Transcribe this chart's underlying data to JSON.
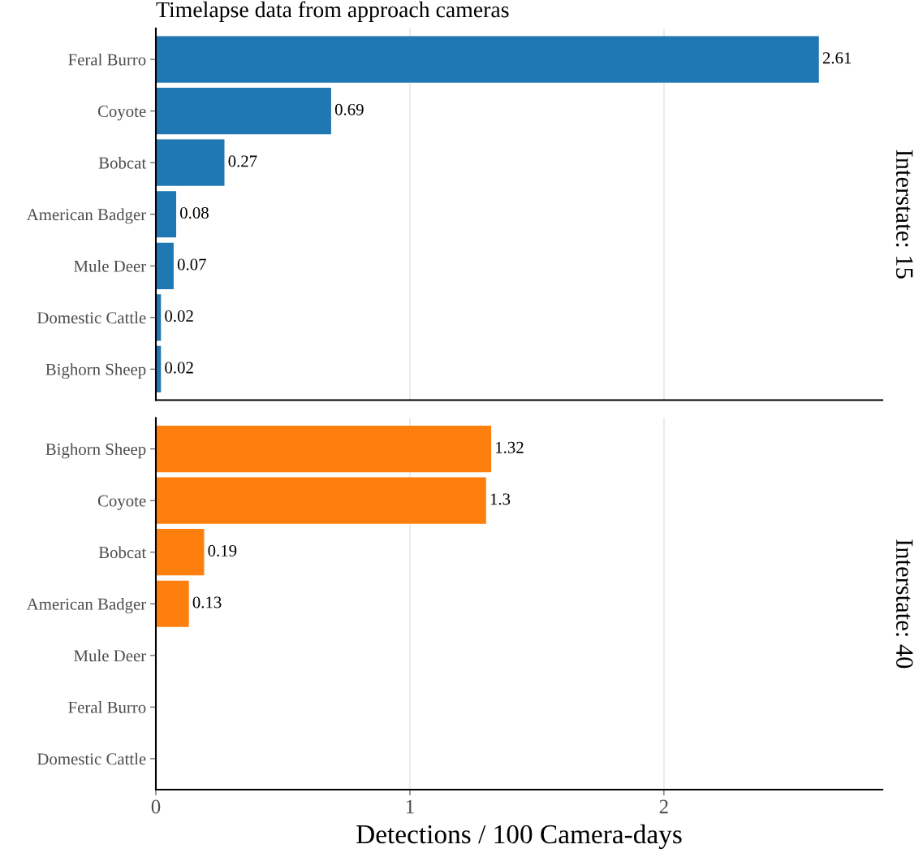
{
  "chart_data": [
    {
      "type": "bar",
      "orientation": "horizontal",
      "title": "Timelapse data from approach cameras",
      "categories": [
        "Feral Burro",
        "Coyote",
        "Bobcat",
        "American Badger",
        "Mule Deer",
        "Domestic Cattle",
        "Bighorn Sheep"
      ],
      "values": [
        2.61,
        0.69,
        0.27,
        0.08,
        0.07,
        0.02,
        0.02
      ],
      "value_labels": [
        "2.61",
        "0.69",
        "0.27",
        "0.08",
        "0.07",
        "0.02",
        "0.02"
      ],
      "color": "#1f77b4",
      "xlim": [
        0,
        2.86
      ],
      "xticks": [
        0,
        1,
        2
      ],
      "grid": "x",
      "tick_labels": "y",
      "annotations": [
        "Interstate: 15"
      ]
    },
    {
      "type": "bar",
      "orientation": "horizontal",
      "categories": [
        "Bighorn Sheep",
        "Coyote",
        "Bobcat",
        "American Badger",
        "Mule Deer",
        "Feral Burro",
        "Domestic Cattle"
      ],
      "values": [
        1.32,
        1.3,
        0.19,
        0.13,
        0,
        0,
        0
      ],
      "value_labels": [
        "1.32",
        "1.3",
        "0.19",
        "0.13",
        null,
        null,
        null
      ],
      "color": "#ff7f0e",
      "xlim": [
        0,
        2.86
      ],
      "xticks": [
        0,
        1,
        2
      ],
      "grid": "x",
      "xlabel": "Detections / 100 Camera-days",
      "annotations": [
        "Interstate: 40"
      ]
    }
  ]
}
